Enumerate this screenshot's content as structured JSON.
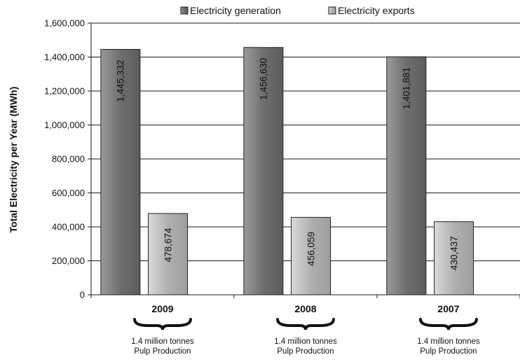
{
  "chart_data": {
    "type": "bar",
    "title": "",
    "xlabel": "",
    "ylabel": "Total Electricity per Year (MWh)",
    "ylim": [
      0,
      1600000
    ],
    "yticks": [
      "0",
      "200,000",
      "400,000",
      "600,000",
      "800,000",
      "1,000,000",
      "1,200,000",
      "1,400,000",
      "1,600,000"
    ],
    "grid": "horizontal",
    "legend_position": "top",
    "categories": [
      "2009",
      "2008",
      "2007"
    ],
    "category_notes": [
      [
        "1.4 million tonnes",
        "Pulp Production"
      ],
      [
        "1.4 million tonnes",
        "Pulp Production"
      ],
      [
        "1.4 million tonnes",
        "Pulp Production"
      ]
    ],
    "series": [
      {
        "name": "Electricity generation",
        "color": "#666666",
        "values": [
          1445332,
          1456630,
          1401881
        ],
        "labels": [
          "1,445,332",
          "1,456,630",
          "1,401,881"
        ]
      },
      {
        "name": "Electricity exports",
        "color": "#a9a9a9",
        "values": [
          478674,
          456059,
          430437
        ],
        "labels": [
          "478,674",
          "456,059",
          "430,437"
        ]
      }
    ]
  }
}
